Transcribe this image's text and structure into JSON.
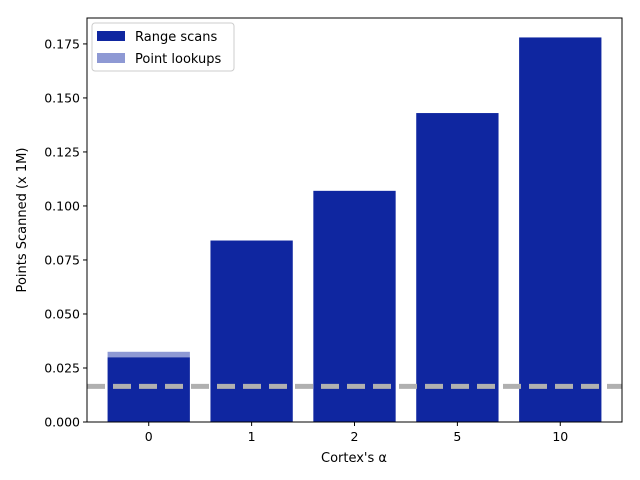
{
  "chart_data": {
    "type": "bar",
    "stacked": true,
    "categories": [
      "0",
      "1",
      "2",
      "5",
      "10"
    ],
    "series": [
      {
        "name": "Range scans",
        "values": [
          0.03,
          0.084,
          0.107,
          0.143,
          0.178
        ],
        "color": "#0f26a0"
      },
      {
        "name": "Point lookups",
        "values": [
          0.0025,
          0.0,
          0.0,
          0.0,
          0.0
        ],
        "color": "#8e99d4"
      }
    ],
    "reference_line": {
      "value": 0.0165,
      "color": "#b0b0b0",
      "style": "dashed"
    },
    "xlabel": "Cortex's α",
    "ylabel": "Points Scanned (x 1M)",
    "ylim": [
      0,
      0.187
    ],
    "yticks": [
      "0.000",
      "0.025",
      "0.050",
      "0.075",
      "0.100",
      "0.125",
      "0.150",
      "0.175"
    ],
    "legend_position": "top-left",
    "grid": false
  }
}
